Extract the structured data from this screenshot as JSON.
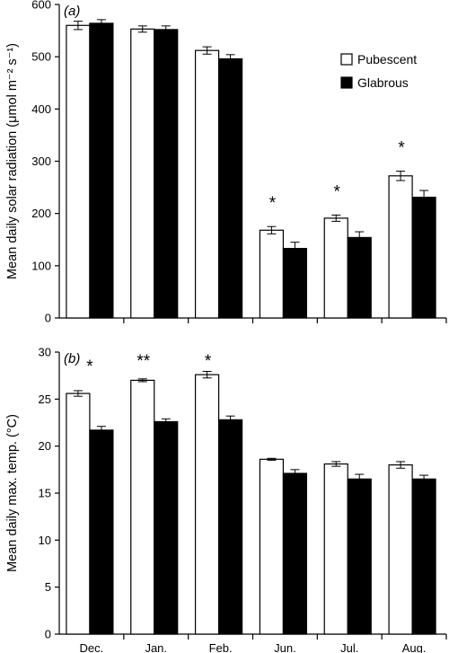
{
  "chart_data": [
    {
      "type": "bar",
      "panel_label": "(a)",
      "categories": [
        "Dec.",
        "Jan.",
        "Feb.",
        "Jun.",
        "Jul.",
        "Aug."
      ],
      "ylabel": "Mean daily solar radiation (μmol m⁻² s⁻¹)",
      "ylim": [
        0,
        600
      ],
      "yticks": [
        0,
        100,
        200,
        300,
        400,
        500,
        600
      ],
      "legend_position": "top-right",
      "series": [
        {
          "name": "Pubescent",
          "fill": "#ffffff",
          "values": [
            560,
            553,
            512,
            168,
            191,
            272
          ],
          "errors": [
            8,
            6,
            7,
            7,
            6,
            9
          ]
        },
        {
          "name": "Glabrous",
          "fill": "#000000",
          "values": [
            564,
            552,
            496,
            133,
            154,
            231
          ],
          "errors": [
            7,
            7,
            8,
            12,
            11,
            13
          ]
        }
      ],
      "annotations": [
        {
          "category": "Jun.",
          "text": "*"
        },
        {
          "category": "Jul.",
          "text": "*"
        },
        {
          "category": "Aug.",
          "text": "*"
        }
      ]
    },
    {
      "type": "bar",
      "panel_label": "(b)",
      "categories": [
        "Dec.",
        "Jan.",
        "Feb.",
        "Jun.",
        "Jul.",
        "Aug."
      ],
      "ylabel": "Mean daily max. temp. (°C)",
      "ylim": [
        0,
        30
      ],
      "yticks": [
        0,
        5,
        10,
        15,
        20,
        25,
        30
      ],
      "series": [
        {
          "name": "Pubescent",
          "fill": "#ffffff",
          "values": [
            25.6,
            27.0,
            27.6,
            18.6,
            18.1,
            18.0
          ],
          "errors": [
            0.3,
            0.15,
            0.35,
            0.1,
            0.25,
            0.35
          ]
        },
        {
          "name": "Glabrous",
          "fill": "#000000",
          "values": [
            21.7,
            22.6,
            22.8,
            17.1,
            16.5,
            16.5
          ],
          "errors": [
            0.4,
            0.3,
            0.4,
            0.4,
            0.5,
            0.4
          ]
        }
      ],
      "annotations": [
        {
          "category": "Dec.",
          "text": "*"
        },
        {
          "category": "Jan.",
          "text": "**"
        },
        {
          "category": "Feb.",
          "text": "*"
        }
      ]
    }
  ]
}
